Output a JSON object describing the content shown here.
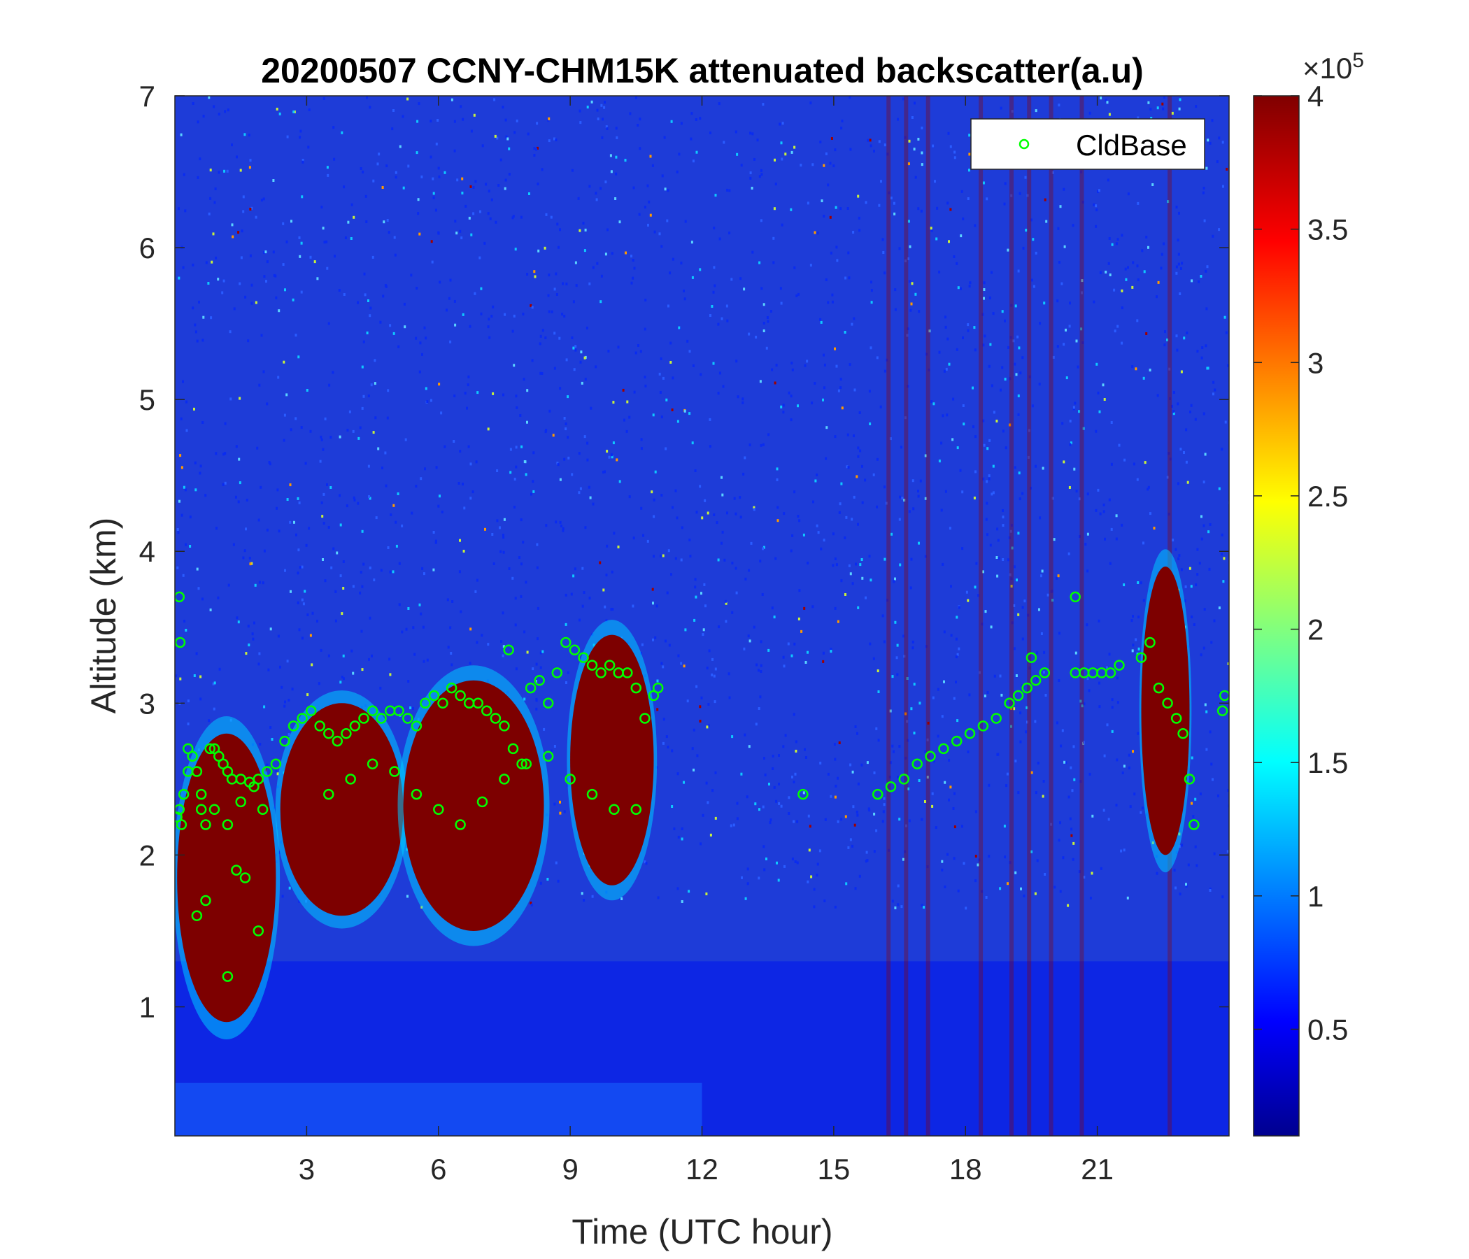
{
  "chart_data": {
    "type": "heatmap",
    "title": "20200507 CCNY-CHM15K attenuated backscatter(a.u)",
    "xlabel": "Time (UTC hour)",
    "ylabel": "Altitude (km)",
    "xlim": [
      0,
      24
    ],
    "ylim": [
      0.15,
      7
    ],
    "xticks": [
      3,
      6,
      9,
      12,
      15,
      18,
      21
    ],
    "xtick_labels": [
      "3",
      "6",
      "9",
      "12",
      "15",
      "18",
      "21"
    ],
    "yticks": [
      1,
      2,
      3,
      4,
      5,
      6,
      7
    ],
    "ytick_labels": [
      "1",
      "2",
      "3",
      "4",
      "5",
      "6",
      "7"
    ],
    "colorbar": {
      "colormap": "jet",
      "range": [
        10000,
        400000
      ],
      "ticks": [
        0.5,
        1,
        1.5,
        2,
        2.5,
        3,
        3.5,
        4
      ],
      "tick_labels": [
        "0.5",
        "1",
        "1.5",
        "2",
        "2.5",
        "3",
        "3.5",
        "4"
      ],
      "exponent_base": "×10",
      "exponent_power": "5"
    },
    "legend": {
      "placement": "top-right",
      "entries": [
        {
          "label": "CldBase",
          "marker": "open-circle",
          "color": "#00ff00"
        }
      ]
    },
    "series": [
      {
        "name": "CldBase",
        "marker_color": "#00ff00",
        "x": [
          0.05,
          0.1,
          0.15,
          0.2,
          0.3,
          0.4,
          0.5,
          0.6,
          0.7,
          0.8,
          0.9,
          1.0,
          1.1,
          1.2,
          1.3,
          1.5,
          1.7,
          1.9,
          2.1,
          2.3,
          2.5,
          2.7,
          2.9,
          3.1,
          3.3,
          3.5,
          3.7,
          3.9,
          4.1,
          4.3,
          4.5,
          4.7,
          4.9,
          5.1,
          5.3,
          5.5,
          5.7,
          5.9,
          6.1,
          6.3,
          6.5,
          6.7,
          6.9,
          7.1,
          7.3,
          7.5,
          7.7,
          7.9,
          8.1,
          8.3,
          8.5,
          8.7,
          8.9,
          9.1,
          9.3,
          9.5,
          9.7,
          9.9,
          10.1,
          10.3,
          10.5,
          10.7,
          10.9,
          11.0,
          0.3,
          0.6,
          0.9,
          1.2,
          1.5,
          1.8,
          2.0,
          3.5,
          4.0,
          4.5,
          5.0,
          5.5,
          6.0,
          6.5,
          7.0,
          7.5,
          8.0,
          8.5,
          9.0,
          9.5,
          10.0,
          10.5,
          0.5,
          0.7,
          1.4,
          1.6,
          1.9,
          0.1,
          0.12,
          1.2,
          7.6,
          14.3,
          16.0,
          16.3,
          16.6,
          16.9,
          17.2,
          17.5,
          17.8,
          18.1,
          18.4,
          18.7,
          19.0,
          19.2,
          19.4,
          19.6,
          19.8,
          20.5,
          20.7,
          20.9,
          21.1,
          21.3,
          21.5,
          22.0,
          22.2,
          22.4,
          22.6,
          22.8,
          22.95,
          23.1,
          23.2,
          23.85,
          23.9,
          19.5,
          20.5
        ],
        "y": [
          2.25,
          2.3,
          2.2,
          2.4,
          2.7,
          2.65,
          2.55,
          2.3,
          2.2,
          2.7,
          2.7,
          2.65,
          2.6,
          2.55,
          2.5,
          2.5,
          2.48,
          2.5,
          2.55,
          2.6,
          2.75,
          2.85,
          2.9,
          2.95,
          2.85,
          2.8,
          2.75,
          2.8,
          2.85,
          2.9,
          2.95,
          2.9,
          2.95,
          2.95,
          2.9,
          2.85,
          3.0,
          3.05,
          3.0,
          3.1,
          3.05,
          3.0,
          3.0,
          2.95,
          2.9,
          2.85,
          2.7,
          2.6,
          3.1,
          3.15,
          3.0,
          3.2,
          3.4,
          3.35,
          3.3,
          3.25,
          3.2,
          3.25,
          3.2,
          3.2,
          3.1,
          2.9,
          3.05,
          3.1,
          2.55,
          2.4,
          2.3,
          2.2,
          2.35,
          2.45,
          2.3,
          2.4,
          2.5,
          2.6,
          2.55,
          2.4,
          2.3,
          2.2,
          2.35,
          2.5,
          2.6,
          2.65,
          2.5,
          2.4,
          2.3,
          2.3,
          1.6,
          1.7,
          1.9,
          1.85,
          1.5,
          3.7,
          3.4,
          1.2,
          3.35,
          2.4,
          2.4,
          2.45,
          2.5,
          2.6,
          2.65,
          2.7,
          2.75,
          2.8,
          2.85,
          2.9,
          3.0,
          3.05,
          3.1,
          3.15,
          3.2,
          3.2,
          3.2,
          3.2,
          3.2,
          3.2,
          3.25,
          3.3,
          3.4,
          3.1,
          3.0,
          2.9,
          2.8,
          2.5,
          2.2,
          2.95,
          3.05,
          3.3,
          3.7
        ]
      }
    ]
  }
}
